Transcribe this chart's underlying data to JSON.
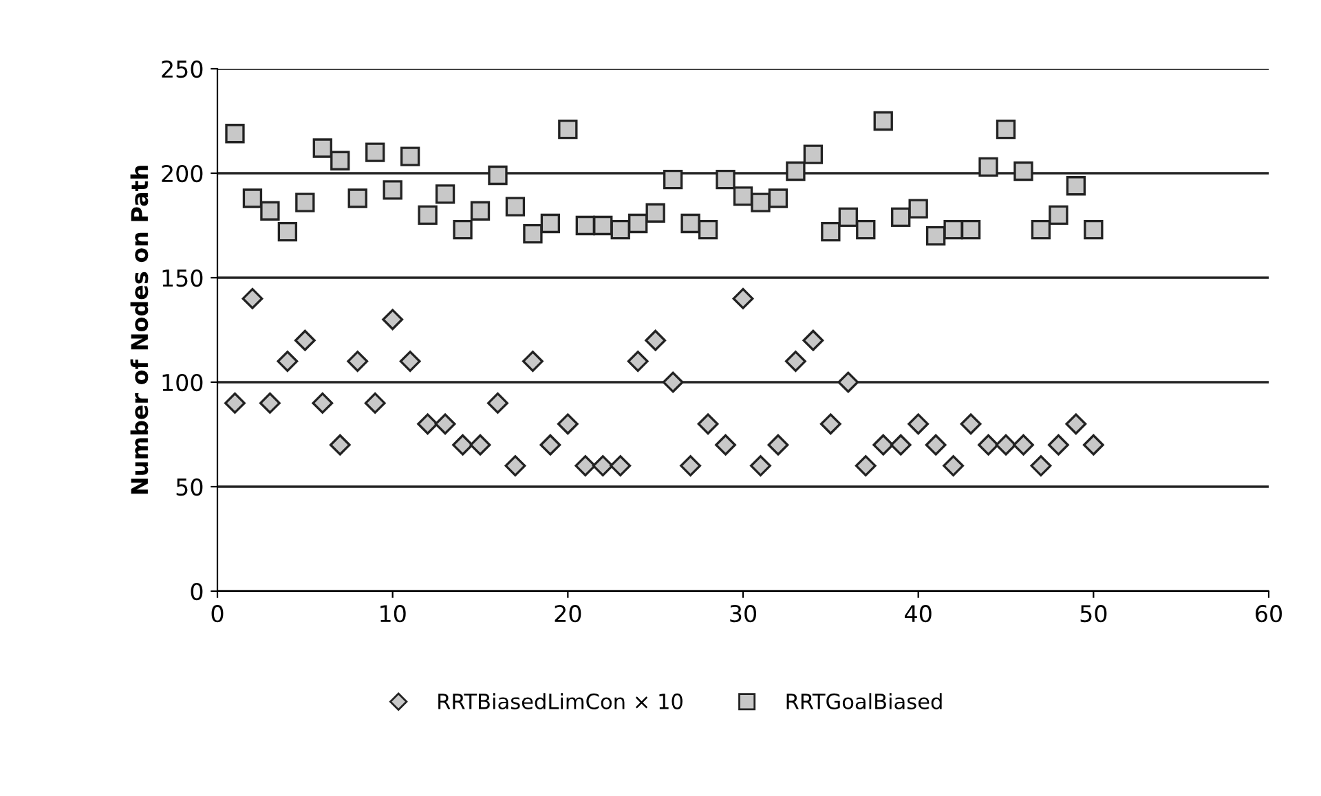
{
  "chart_data": {
    "type": "scatter",
    "ylabel": "Number of Nodes on Path",
    "x": [
      1,
      2,
      3,
      4,
      5,
      6,
      7,
      8,
      9,
      10,
      11,
      12,
      13,
      14,
      15,
      16,
      17,
      18,
      19,
      20,
      21,
      22,
      23,
      24,
      25,
      26,
      27,
      28,
      29,
      30,
      31,
      32,
      33,
      34,
      35,
      36,
      37,
      38,
      39,
      40,
      41,
      42,
      43,
      44,
      45,
      46,
      47,
      48,
      49,
      50
    ],
    "series": [
      {
        "name": "RRTBiasedLimCon × 10",
        "color": "#c8c8c8",
        "marker": "diamond",
        "values": [
          90,
          140,
          90,
          110,
          120,
          90,
          70,
          110,
          90,
          130,
          110,
          80,
          80,
          70,
          70,
          90,
          60,
          110,
          70,
          80,
          60,
          60,
          60,
          110,
          120,
          100,
          60,
          80,
          70,
          140,
          60,
          70,
          110,
          120,
          80,
          100,
          60,
          70,
          70,
          80,
          70,
          60,
          80,
          70,
          70,
          70,
          60,
          70,
          80,
          70
        ]
      },
      {
        "name": "RRTGoalBiased",
        "color": "#c8c8c8",
        "marker": "square",
        "values": [
          219,
          188,
          182,
          172,
          186,
          212,
          206,
          188,
          210,
          192,
          208,
          180,
          190,
          173,
          182,
          199,
          184,
          171,
          176,
          221,
          175,
          175,
          173,
          176,
          181,
          197,
          176,
          173,
          197,
          189,
          186,
          188,
          201,
          209,
          172,
          179,
          173,
          225,
          179,
          183,
          170,
          173,
          173,
          203,
          221,
          201,
          173,
          180,
          194,
          173
        ]
      }
    ],
    "xlim": [
      0,
      60
    ],
    "xticks": [
      0,
      10,
      20,
      30,
      40,
      50,
      60
    ],
    "ylim": [
      0,
      250
    ],
    "yticks": [
      0,
      50,
      100,
      150,
      200,
      250
    ],
    "grid": "y",
    "legend": "bottom"
  }
}
